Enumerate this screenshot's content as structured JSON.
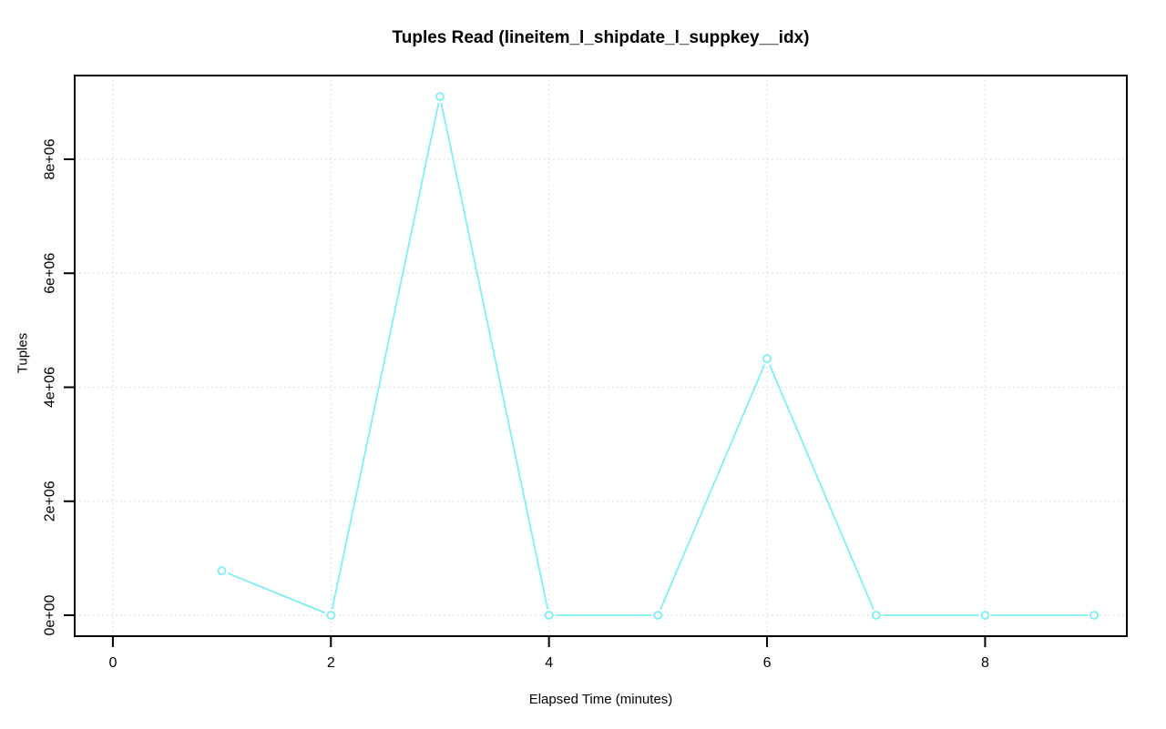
{
  "figure": {
    "background_color": "#ffffff"
  },
  "chart_data": {
    "type": "line",
    "title": "Tuples Read (lineitem_l_shipdate_l_suppkey__idx)",
    "xlabel": "Elapsed Time (minutes)",
    "ylabel": "Tuples",
    "x": [
      1,
      2,
      3,
      4,
      5,
      6,
      7,
      8,
      9
    ],
    "y": [
      780000,
      0,
      9100000,
      0,
      0,
      4500000,
      0,
      0,
      0
    ],
    "x_ticks": [
      0,
      2,
      4,
      6,
      8
    ],
    "x_tick_labels": [
      "0",
      "2",
      "4",
      "6",
      "8"
    ],
    "y_ticks": [
      0,
      2000000,
      4000000,
      6000000,
      8000000
    ],
    "y_tick_labels": [
      "0e+00",
      "2e+06",
      "4e+06",
      "6e+06",
      "8e+06"
    ],
    "xlim": [
      -0.35,
      9.3
    ],
    "ylim": [
      -367000,
      9469000
    ],
    "grid": "dotted",
    "legend": "none",
    "marker": "open-circle",
    "line_color": "#7DF0F5",
    "marker_fill": "#ffffff",
    "grid_color": "#DADADA",
    "axis_color": "#000000",
    "text_color": "#000000"
  }
}
